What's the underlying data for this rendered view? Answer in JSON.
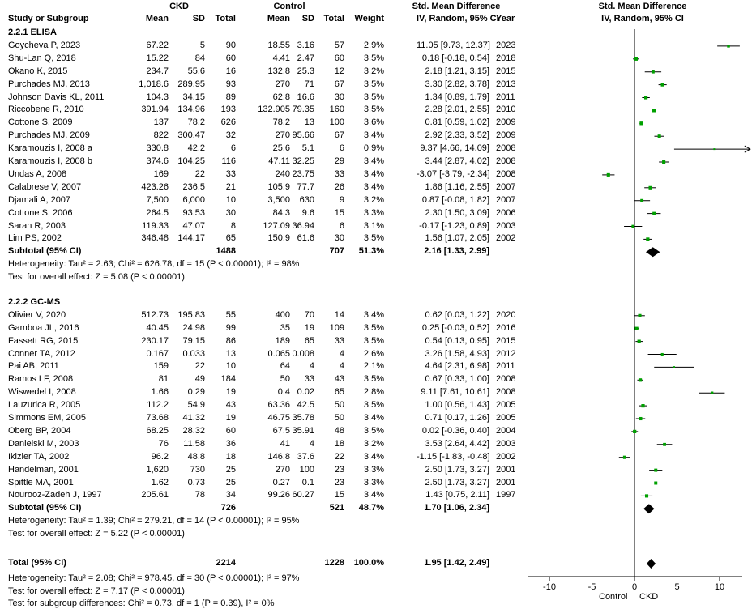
{
  "header": {
    "ckd": "CKD",
    "control": "Control",
    "smd": "Std. Mean Difference",
    "smd_right": "Std. Mean Difference",
    "study": "Study or Subgroup",
    "mean1": "Mean",
    "sd1": "SD",
    "total1": "Total",
    "mean2": "Mean",
    "sd2": "SD",
    "total2": "Total",
    "weight": "Weight",
    "method": "IV, Random, 95% CI",
    "year": "Year",
    "method_right": "IV, Random, 95% CI"
  },
  "groups": [
    {
      "title": "2.2.1 ELISA",
      "rows": [
        {
          "study": "Goycheva P, 2023",
          "m1": "67.22",
          "s1": "5",
          "n1": "90",
          "m2": "18.55",
          "s2": "3.16",
          "n2": "57",
          "w": "2.9%",
          "ci": "11.05 [9.73, 12.37]",
          "year": "2023"
        },
        {
          "study": "Shu-Lan Q, 2018",
          "m1": "15.22",
          "s1": "84",
          "n1": "60",
          "m2": "4.41",
          "s2": "2.47",
          "n2": "60",
          "w": "3.5%",
          "ci": "0.18 [-0.18, 0.54]",
          "year": "2018"
        },
        {
          "study": "Okano K, 2015",
          "m1": "234.7",
          "s1": "55.6",
          "n1": "16",
          "m2": "132.8",
          "s2": "25.3",
          "n2": "12",
          "w": "3.2%",
          "ci": "2.18 [1.21, 3.15]",
          "year": "2015"
        },
        {
          "study": "Purchades MJ, 2013",
          "m1": "1,018.6",
          "s1": "289.95",
          "n1": "93",
          "m2": "270",
          "s2": "71",
          "n2": "67",
          "w": "3.5%",
          "ci": "3.30 [2.82, 3.78]",
          "year": "2013"
        },
        {
          "study": "Johnson Davis KL, 2011",
          "m1": "104.3",
          "s1": "34.15",
          "n1": "89",
          "m2": "62.8",
          "s2": "16.6",
          "n2": "30",
          "w": "3.5%",
          "ci": "1.34 [0.89, 1.79]",
          "year": "2011"
        },
        {
          "study": "Riccobene R, 2010",
          "m1": "391.94",
          "s1": "134.96",
          "n1": "193",
          "m2": "132.905",
          "s2": "79.35",
          "n2": "160",
          "w": "3.5%",
          "ci": "2.28 [2.01, 2.55]",
          "year": "2010"
        },
        {
          "study": "Cottone S, 2009",
          "m1": "137",
          "s1": "78.2",
          "n1": "626",
          "m2": "78.2",
          "s2": "13",
          "n2": "100",
          "w": "3.6%",
          "ci": "0.81 [0.59, 1.02]",
          "year": "2009"
        },
        {
          "study": "Purchades MJ, 2009",
          "m1": "822",
          "s1": "300.47",
          "n1": "32",
          "m2": "270",
          "s2": "95.66",
          "n2": "67",
          "w": "3.4%",
          "ci": "2.92 [2.33, 3.52]",
          "year": "2009"
        },
        {
          "study": "Karamouzis I, 2008 a",
          "m1": "330.8",
          "s1": "42.2",
          "n1": "6",
          "m2": "25.6",
          "s2": "5.1",
          "n2": "6",
          "w": "0.9%",
          "ci": "9.37 [4.66, 14.09]",
          "year": "2008"
        },
        {
          "study": "Karamouzis I, 2008 b",
          "m1": "374.6",
          "s1": "104.25",
          "n1": "116",
          "m2": "47.11",
          "s2": "32.25",
          "n2": "29",
          "w": "3.4%",
          "ci": "3.44 [2.87, 4.02]",
          "year": "2008"
        },
        {
          "study": "Undas A, 2008",
          "m1": "169",
          "s1": "22",
          "n1": "33",
          "m2": "240",
          "s2": "23.75",
          "n2": "33",
          "w": "3.4%",
          "ci": "-3.07 [-3.79, -2.34]",
          "year": "2008"
        },
        {
          "study": "Calabrese V, 2007",
          "m1": "423.26",
          "s1": "236.5",
          "n1": "21",
          "m2": "105.9",
          "s2": "77.7",
          "n2": "26",
          "w": "3.4%",
          "ci": "1.86 [1.16, 2.55]",
          "year": "2007"
        },
        {
          "study": "Djamali A, 2007",
          "m1": "7,500",
          "s1": "6,000",
          "n1": "10",
          "m2": "3,500",
          "s2": "630",
          "n2": "9",
          "w": "3.2%",
          "ci": "0.87 [-0.08, 1.82]",
          "year": "2007"
        },
        {
          "study": "Cottone S, 2006",
          "m1": "264.5",
          "s1": "93.53",
          "n1": "30",
          "m2": "84.3",
          "s2": "9.6",
          "n2": "15",
          "w": "3.3%",
          "ci": "2.30 [1.50, 3.09]",
          "year": "2006"
        },
        {
          "study": "Saran R, 2003",
          "m1": "119.33",
          "s1": "47.07",
          "n1": "8",
          "m2": "127.09",
          "s2": "36.94",
          "n2": "6",
          "w": "3.1%",
          "ci": "-0.17 [-1.23, 0.89]",
          "year": "2003"
        },
        {
          "study": "Lim PS, 2002",
          "m1": "346.48",
          "s1": "144.17",
          "n1": "65",
          "m2": "150.9",
          "s2": "61.6",
          "n2": "30",
          "w": "3.5%",
          "ci": "1.56 [1.07, 2.05]",
          "year": "2002"
        }
      ],
      "subtotal": {
        "label": "Subtotal (95% CI)",
        "n1": "1488",
        "n2": "707",
        "w": "51.3%",
        "ci": "2.16 [1.33, 2.99]"
      },
      "heterogeneity": "Heterogeneity: Tau² = 2.63; Chi² = 626.78, df = 15 (P < 0.00001); I² = 98%",
      "overall": "Test for overall effect: Z = 5.08 (P < 0.00001)"
    },
    {
      "title": "2.2.2 GC-MS",
      "rows": [
        {
          "study": "Olivier V, 2020",
          "m1": "512.73",
          "s1": "195.83",
          "n1": "55",
          "m2": "400",
          "s2": "70",
          "n2": "14",
          "w": "3.4%",
          "ci": "0.62 [0.03, 1.22]",
          "year": "2020"
        },
        {
          "study": "Gamboa JL, 2016",
          "m1": "40.45",
          "s1": "24.98",
          "n1": "99",
          "m2": "35",
          "s2": "19",
          "n2": "109",
          "w": "3.5%",
          "ci": "0.25 [-0.03, 0.52]",
          "year": "2016"
        },
        {
          "study": "Fassett RG, 2015",
          "m1": "230.17",
          "s1": "79.15",
          "n1": "86",
          "m2": "189",
          "s2": "65",
          "n2": "33",
          "w": "3.5%",
          "ci": "0.54 [0.13, 0.95]",
          "year": "2015"
        },
        {
          "study": "Conner TA, 2012",
          "m1": "0.167",
          "s1": "0.033",
          "n1": "13",
          "m2": "0.065",
          "s2": "0.008",
          "n2": "4",
          "w": "2.6%",
          "ci": "3.26 [1.58, 4.93]",
          "year": "2012"
        },
        {
          "study": "Pai AB, 2011",
          "m1": "159",
          "s1": "22",
          "n1": "10",
          "m2": "64",
          "s2": "4",
          "n2": "4",
          "w": "2.1%",
          "ci": "4.64 [2.31, 6.98]",
          "year": "2011"
        },
        {
          "study": "Ramos LF, 2008",
          "m1": "81",
          "s1": "49",
          "n1": "184",
          "m2": "50",
          "s2": "33",
          "n2": "43",
          "w": "3.5%",
          "ci": "0.67 [0.33, 1.00]",
          "year": "2008"
        },
        {
          "study": "Wiswedel I, 2008",
          "m1": "1.66",
          "s1": "0.29",
          "n1": "19",
          "m2": "0.4",
          "s2": "0.02",
          "n2": "65",
          "w": "2.8%",
          "ci": "9.11 [7.61, 10.61]",
          "year": "2008"
        },
        {
          "study": "Lauzurica R, 2005",
          "m1": "112.2",
          "s1": "54.9",
          "n1": "43",
          "m2": "63.36",
          "s2": "42.5",
          "n2": "50",
          "w": "3.5%",
          "ci": "1.00 [0.56, 1.43]",
          "year": "2005"
        },
        {
          "study": "Simmons EM, 2005",
          "m1": "73.68",
          "s1": "41.32",
          "n1": "19",
          "m2": "46.75",
          "s2": "35.78",
          "n2": "50",
          "w": "3.4%",
          "ci": "0.71 [0.17, 1.26]",
          "year": "2005"
        },
        {
          "study": "Oberg BP, 2004",
          "m1": "68.25",
          "s1": "28.32",
          "n1": "60",
          "m2": "67.5",
          "s2": "35.91",
          "n2": "48",
          "w": "3.5%",
          "ci": "0.02 [-0.36, 0.40]",
          "year": "2004"
        },
        {
          "study": "Danielski M, 2003",
          "m1": "76",
          "s1": "11.58",
          "n1": "36",
          "m2": "41",
          "s2": "4",
          "n2": "18",
          "w": "3.2%",
          "ci": "3.53 [2.64, 4.42]",
          "year": "2003"
        },
        {
          "study": "Ikizler TA, 2002",
          "m1": "96.2",
          "s1": "48.8",
          "n1": "18",
          "m2": "146.8",
          "s2": "37.6",
          "n2": "22",
          "w": "3.4%",
          "ci": "-1.15 [-1.83, -0.48]",
          "year": "2002"
        },
        {
          "study": "Handelman, 2001",
          "m1": "1,620",
          "s1": "730",
          "n1": "25",
          "m2": "270",
          "s2": "100",
          "n2": "23",
          "w": "3.3%",
          "ci": "2.50 [1.73, 3.27]",
          "year": "2001"
        },
        {
          "study": "Spittle MA, 2001",
          "m1": "1.62",
          "s1": "0.73",
          "n1": "25",
          "m2": "0.27",
          "s2": "0.1",
          "n2": "23",
          "w": "3.3%",
          "ci": "2.50 [1.73, 3.27]",
          "year": "2001"
        },
        {
          "study": "Nourooz-Zadeh J, 1997",
          "m1": "205.61",
          "s1": "78",
          "n1": "34",
          "m2": "99.26",
          "s2": "60.27",
          "n2": "15",
          "w": "3.4%",
          "ci": "1.43 [0.75, 2.11]",
          "year": "1997"
        }
      ],
      "subtotal": {
        "label": "Subtotal (95% CI)",
        "n1": "726",
        "n2": "521",
        "w": "48.7%",
        "ci": "1.70 [1.06, 2.34]"
      },
      "heterogeneity": "Heterogeneity: Tau² = 1.39; Chi² = 279.21, df = 14 (P < 0.00001); I² = 95%",
      "overall": "Test for overall effect: Z = 5.22 (P < 0.00001)"
    }
  ],
  "total": {
    "label": "Total (95% CI)",
    "n1": "2214",
    "n2": "1228",
    "w": "100.0%",
    "ci": "1.95 [1.42, 2.49]"
  },
  "footer": {
    "heterogeneity": "Heterogeneity: Tau² = 2.08; Chi² = 978.45, df = 30 (P < 0.00001); I² = 97%",
    "overall": "Test for overall effect: Z = 7.17 (P < 0.00001)",
    "subgroup": "Test for subgroup differences: Chi² = 0.73, df = 1 (P = 0.39), I² = 0%"
  },
  "axis_labels": {
    "left": "Control",
    "right": "CKD"
  },
  "colors": {
    "point": "#00a000",
    "diamond": "#000000"
  },
  "chart_data": {
    "type": "forest",
    "xlim": [
      -10,
      10
    ],
    "ticks": [
      "-10",
      "-5",
      "0",
      "5",
      "10"
    ],
    "tick_values": [
      -10,
      -5,
      0,
      5,
      10
    ],
    "clip_max": 13.6,
    "studies": [
      {
        "y": 11.05,
        "lo": 9.73,
        "hi": 12.37,
        "w": 2.9
      },
      {
        "y": 0.18,
        "lo": -0.18,
        "hi": 0.54,
        "w": 3.5
      },
      {
        "y": 2.18,
        "lo": 1.21,
        "hi": 3.15,
        "w": 3.2
      },
      {
        "y": 3.3,
        "lo": 2.82,
        "hi": 3.78,
        "w": 3.5
      },
      {
        "y": 1.34,
        "lo": 0.89,
        "hi": 1.79,
        "w": 3.5
      },
      {
        "y": 2.28,
        "lo": 2.01,
        "hi": 2.55,
        "w": 3.5
      },
      {
        "y": 0.81,
        "lo": 0.59,
        "hi": 1.02,
        "w": 3.6
      },
      {
        "y": 2.92,
        "lo": 2.33,
        "hi": 3.52,
        "w": 3.4
      },
      {
        "y": 9.37,
        "lo": 4.66,
        "hi": 14.09,
        "w": 0.9
      },
      {
        "y": 3.44,
        "lo": 2.87,
        "hi": 4.02,
        "w": 3.4
      },
      {
        "y": -3.07,
        "lo": -3.79,
        "hi": -2.34,
        "w": 3.4
      },
      {
        "y": 1.86,
        "lo": 1.16,
        "hi": 2.55,
        "w": 3.4
      },
      {
        "y": 0.87,
        "lo": -0.08,
        "hi": 1.82,
        "w": 3.2
      },
      {
        "y": 2.3,
        "lo": 1.5,
        "hi": 3.09,
        "w": 3.3
      },
      {
        "y": -0.17,
        "lo": -1.23,
        "hi": 0.89,
        "w": 3.1
      },
      {
        "y": 1.56,
        "lo": 1.07,
        "hi": 2.05,
        "w": 3.5
      },
      {
        "y": 0.62,
        "lo": 0.03,
        "hi": 1.22,
        "w": 3.4
      },
      {
        "y": 0.25,
        "lo": -0.03,
        "hi": 0.52,
        "w": 3.5
      },
      {
        "y": 0.54,
        "lo": 0.13,
        "hi": 0.95,
        "w": 3.5
      },
      {
        "y": 3.26,
        "lo": 1.58,
        "hi": 4.93,
        "w": 2.6
      },
      {
        "y": 4.64,
        "lo": 2.31,
        "hi": 6.98,
        "w": 2.1
      },
      {
        "y": 0.67,
        "lo": 0.33,
        "hi": 1.0,
        "w": 3.5
      },
      {
        "y": 9.11,
        "lo": 7.61,
        "hi": 10.61,
        "w": 2.8
      },
      {
        "y": 1.0,
        "lo": 0.56,
        "hi": 1.43,
        "w": 3.5
      },
      {
        "y": 0.71,
        "lo": 0.17,
        "hi": 1.26,
        "w": 3.4
      },
      {
        "y": 0.02,
        "lo": -0.36,
        "hi": 0.4,
        "w": 3.5
      },
      {
        "y": 3.53,
        "lo": 2.64,
        "hi": 4.42,
        "w": 3.2
      },
      {
        "y": -1.15,
        "lo": -1.83,
        "hi": -0.48,
        "w": 3.4
      },
      {
        "y": 2.5,
        "lo": 1.73,
        "hi": 3.27,
        "w": 3.3
      },
      {
        "y": 2.5,
        "lo": 1.73,
        "hi": 3.27,
        "w": 3.3
      },
      {
        "y": 1.43,
        "lo": 0.75,
        "hi": 2.11,
        "w": 3.4
      }
    ],
    "diamonds": [
      {
        "name": "Subtotal 2.2.1",
        "y": 2.16,
        "lo": 1.33,
        "hi": 2.99
      },
      {
        "name": "Subtotal 2.2.2",
        "y": 1.7,
        "lo": 1.06,
        "hi": 2.34
      },
      {
        "name": "Total",
        "y": 1.95,
        "lo": 1.42,
        "hi": 2.49
      }
    ]
  }
}
